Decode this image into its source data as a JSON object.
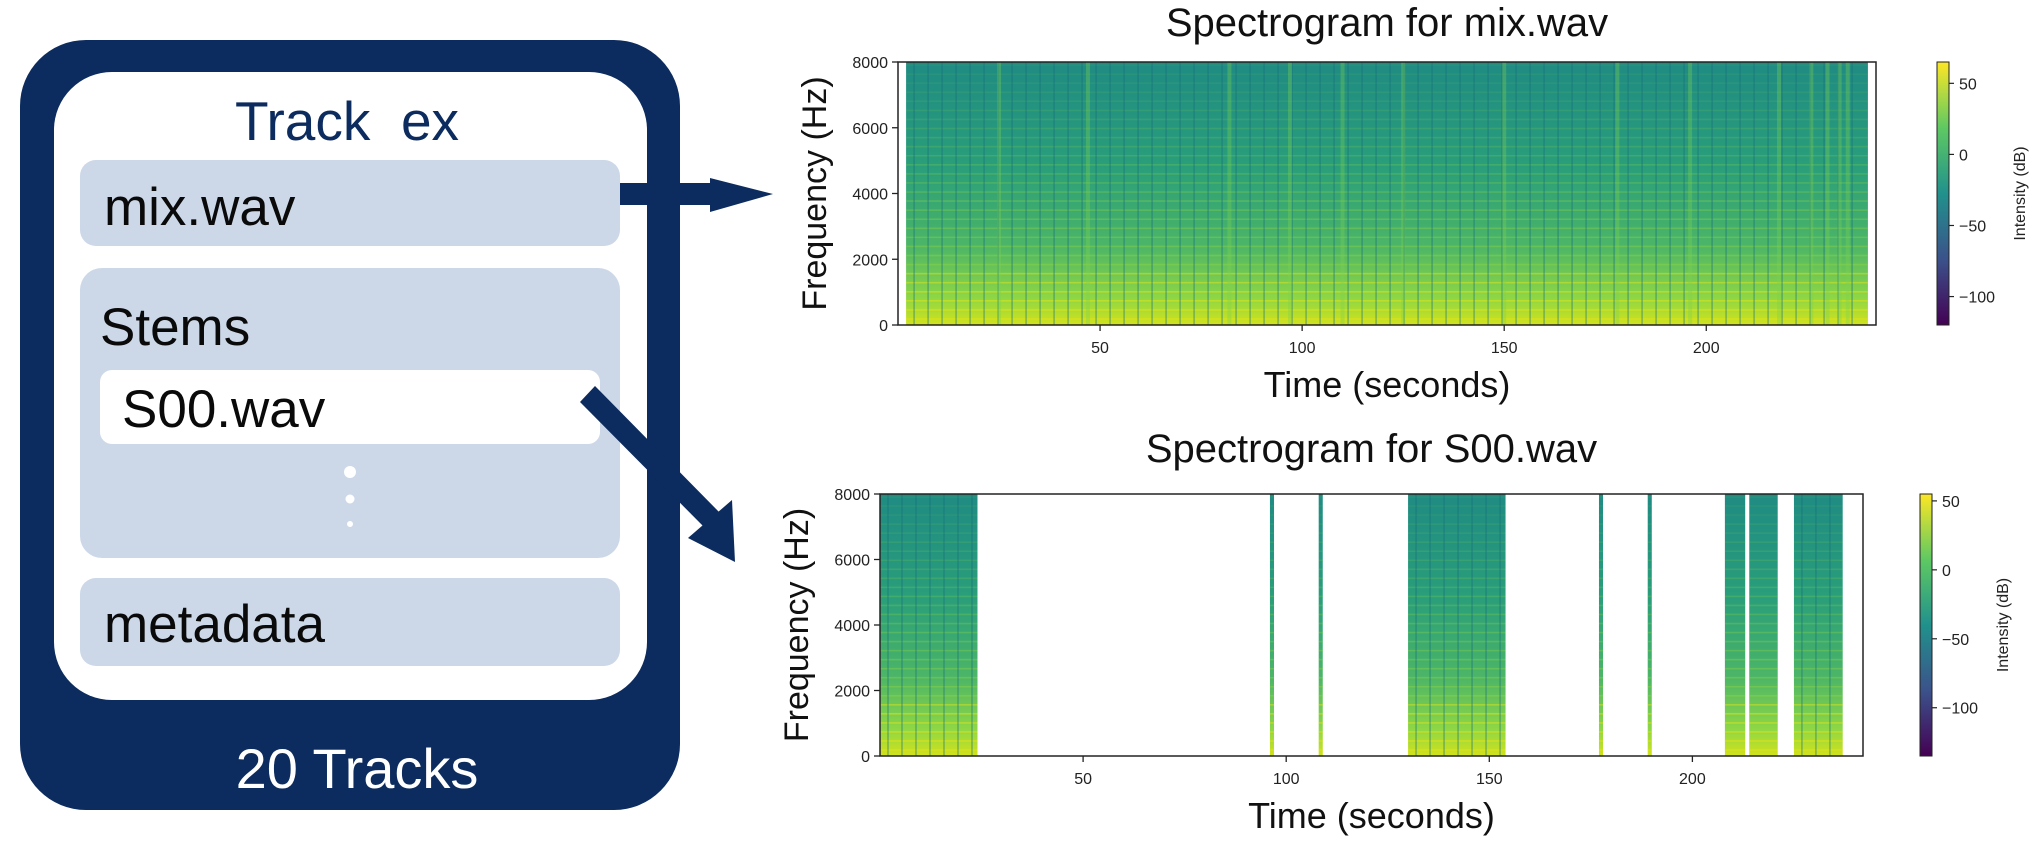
{
  "colors": {
    "navy": "#0c2b5e",
    "panel": "#ccd8e8",
    "white": "#ffffff"
  },
  "dataset": {
    "track_title": "Track  ex",
    "items": {
      "mix": "mix.wav",
      "stems_label": "Stems",
      "stem_file": "S00.wav",
      "metadata": "metadata"
    },
    "count_label": "20 Tracks"
  },
  "chart_data": [
    {
      "type": "heatmap",
      "title": "Spectrogram for mix.wav",
      "xlabel": "Time (seconds)",
      "ylabel": "Frequency (Hz)",
      "xlim": [
        0,
        242
      ],
      "ylim": [
        0,
        8000
      ],
      "x_ticks": [
        50,
        100,
        150,
        200
      ],
      "y_ticks": [
        0,
        2000,
        4000,
        6000,
        8000
      ],
      "colorbar": {
        "label": "Intensity (dB)",
        "range": [
          -120,
          65
        ],
        "ticks": [
          50,
          0,
          -50,
          -100
        ],
        "colormap": "viridis"
      },
      "active_segments": [
        [
          2,
          240
        ]
      ],
      "bright_columns": [
        25,
        47,
        82,
        97,
        110,
        125,
        150,
        178,
        196,
        218,
        226,
        230,
        233,
        235
      ]
    },
    {
      "type": "heatmap",
      "title": "Spectrogram for S00.wav",
      "xlabel": "Time (seconds)",
      "ylabel": "Frequency (Hz)",
      "xlim": [
        0,
        242
      ],
      "ylim": [
        0,
        8000
      ],
      "x_ticks": [
        50,
        100,
        150,
        200
      ],
      "y_ticks": [
        0,
        2000,
        4000,
        6000,
        8000
      ],
      "colorbar": {
        "label": "Intensity (dB)",
        "range": [
          -135,
          55
        ],
        "ticks": [
          50,
          0,
          -50,
          -100
        ],
        "colormap": "viridis"
      },
      "active_segments": [
        [
          0,
          24
        ],
        [
          96,
          97
        ],
        [
          108,
          109
        ],
        [
          130,
          154
        ],
        [
          177,
          178
        ],
        [
          189,
          190
        ],
        [
          208,
          213
        ],
        [
          214,
          221
        ],
        [
          225,
          237
        ]
      ],
      "bright_columns": []
    }
  ]
}
